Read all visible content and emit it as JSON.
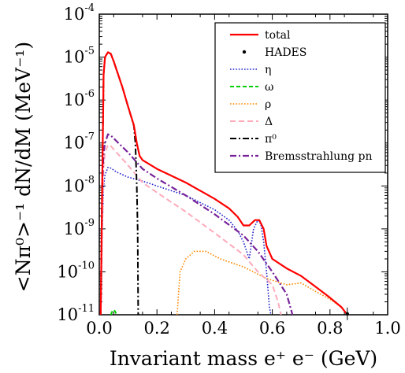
{
  "chart_data": {
    "type": "line",
    "xlabel": "Invariant mass e⁺ e⁻ (GeV)",
    "ylabel": "<Nπ⁰>⁻¹ dN/dM (MeV⁻¹)",
    "xlim": [
      0.0,
      1.0
    ],
    "ylim": [
      1e-11,
      0.0001
    ],
    "yscale": "log",
    "x_ticks": [
      "0.0",
      "0.2",
      "0.4",
      "0.6",
      "0.8",
      "1.0"
    ],
    "y_ticks": [
      {
        "base": "10",
        "exp": "-4",
        "value": 0.0001
      },
      {
        "base": "10",
        "exp": "-5",
        "value": 1e-05
      },
      {
        "base": "10",
        "exp": "-6",
        "value": 1e-06
      },
      {
        "base": "10",
        "exp": "-7",
        "value": 1e-07
      },
      {
        "base": "10",
        "exp": "-8",
        "value": 1e-08
      },
      {
        "base": "10",
        "exp": "-9",
        "value": 1e-09
      },
      {
        "base": "10",
        "exp": "-10",
        "value": 1e-10
      },
      {
        "base": "10",
        "exp": "-11",
        "value": 1e-11
      }
    ],
    "legend_position": "top-right",
    "series": [
      {
        "name": "total",
        "color": "#ff0000",
        "dash": "",
        "width": 2.2,
        "points": [
          [
            0.005,
            1e-11
          ],
          [
            0.01,
            1e-08
          ],
          [
            0.015,
            4e-06
          ],
          [
            0.02,
            1e-05
          ],
          [
            0.03,
            1.3e-05
          ],
          [
            0.04,
            1.2e-05
          ],
          [
            0.05,
            8e-06
          ],
          [
            0.06,
            5e-06
          ],
          [
            0.08,
            2e-06
          ],
          [
            0.1,
            7e-07
          ],
          [
            0.12,
            2.6e-07
          ],
          [
            0.13,
            1e-07
          ],
          [
            0.14,
            5e-08
          ],
          [
            0.15,
            4e-08
          ],
          [
            0.2,
            2.5e-08
          ],
          [
            0.3,
            1.2e-08
          ],
          [
            0.4,
            5e-09
          ],
          [
            0.45,
            3e-09
          ],
          [
            0.48,
            1.9e-09
          ],
          [
            0.5,
            1.2e-09
          ],
          [
            0.52,
            1.2e-09
          ],
          [
            0.54,
            1.6e-09
          ],
          [
            0.555,
            1.6e-09
          ],
          [
            0.57,
            1e-09
          ],
          [
            0.58,
            4e-10
          ],
          [
            0.6,
            2e-10
          ],
          [
            0.65,
            1.2e-10
          ],
          [
            0.7,
            8e-11
          ],
          [
            0.75,
            4.5e-11
          ],
          [
            0.8,
            2.5e-11
          ],
          [
            0.84,
            1.5e-11
          ],
          [
            0.86,
            1e-11
          ]
        ]
      },
      {
        "name": "HADES",
        "color": "#000000",
        "dash": "",
        "width": 0,
        "points": []
      },
      {
        "name": "η",
        "color": "#2222cc",
        "dash": "1.6 2",
        "width": 1.6,
        "points": [
          [
            0.005,
            1e-11
          ],
          [
            0.01,
            1e-09
          ],
          [
            0.015,
            1e-08
          ],
          [
            0.02,
            1.8e-08
          ],
          [
            0.03,
            2.7e-08
          ],
          [
            0.04,
            2.6e-08
          ],
          [
            0.06,
            2.1e-08
          ],
          [
            0.1,
            1.6e-08
          ],
          [
            0.15,
            1.3e-08
          ],
          [
            0.2,
            1e-08
          ],
          [
            0.3,
            6e-09
          ],
          [
            0.4,
            2.8e-09
          ],
          [
            0.45,
            1.6e-09
          ],
          [
            0.48,
            9e-10
          ],
          [
            0.5,
            5e-10
          ],
          [
            0.52,
            2e-10
          ],
          [
            0.535,
            1e-09
          ],
          [
            0.55,
            1.6e-09
          ],
          [
            0.56,
            1.3e-09
          ],
          [
            0.57,
            5e-10
          ],
          [
            0.58,
            1e-10
          ],
          [
            0.59,
            1.5e-11
          ],
          [
            0.595,
            1e-11
          ]
        ]
      },
      {
        "name": "ω",
        "color": "#00cc00",
        "dash": "5 3",
        "width": 2,
        "points": [
          [
            0.04,
            1e-11
          ],
          [
            0.045,
            1.2e-11
          ],
          [
            0.05,
            1.3e-11
          ],
          [
            0.055,
            1.2e-11
          ],
          [
            0.06,
            1e-11
          ]
        ]
      },
      {
        "name": "ρ",
        "color": "#ff8800",
        "dash": "1.6 2",
        "width": 1.6,
        "points": [
          [
            0.27,
            1e-11
          ],
          [
            0.28,
            1e-10
          ],
          [
            0.3,
            2e-10
          ],
          [
            0.33,
            3e-10
          ],
          [
            0.37,
            3e-10
          ],
          [
            0.42,
            2e-10
          ],
          [
            0.5,
            1.3e-10
          ],
          [
            0.58,
            7e-11
          ],
          [
            0.65,
            5e-11
          ],
          [
            0.7,
            5.5e-11
          ],
          [
            0.75,
            3.5e-11
          ],
          [
            0.8,
            2.3e-11
          ],
          [
            0.84,
            1.5e-11
          ],
          [
            0.86,
            1e-11
          ]
        ]
      },
      {
        "name": "Δ",
        "color": "#ffaabb",
        "dash": "7 4",
        "width": 2,
        "points": [
          [
            0.005,
            1e-11
          ],
          [
            0.01,
            1e-09
          ],
          [
            0.015,
            3e-08
          ],
          [
            0.02,
            6e-08
          ],
          [
            0.03,
            9e-08
          ],
          [
            0.04,
            8.5e-08
          ],
          [
            0.06,
            6e-08
          ],
          [
            0.1,
            3e-08
          ],
          [
            0.15,
            1.2e-08
          ],
          [
            0.2,
            7e-09
          ],
          [
            0.3,
            2.5e-09
          ],
          [
            0.4,
            8e-10
          ],
          [
            0.5,
            2.5e-10
          ],
          [
            0.55,
            1e-10
          ],
          [
            0.6,
            5e-11
          ],
          [
            0.62,
            2e-11
          ],
          [
            0.63,
            1e-11
          ]
        ]
      },
      {
        "name": "π⁰",
        "color": "#000000",
        "dash": "8 3 2 3",
        "width": 2,
        "points": [
          [
            0.005,
            1e-11
          ],
          [
            0.01,
            1e-08
          ],
          [
            0.015,
            4e-06
          ],
          [
            0.02,
            1e-05
          ],
          [
            0.03,
            1.3e-05
          ],
          [
            0.04,
            1.2e-05
          ],
          [
            0.05,
            8e-06
          ],
          [
            0.06,
            5e-06
          ],
          [
            0.08,
            2e-06
          ],
          [
            0.1,
            7e-07
          ],
          [
            0.12,
            2.5e-07
          ],
          [
            0.125,
            1e-07
          ],
          [
            0.13,
            1e-08
          ],
          [
            0.133,
            1e-09
          ],
          [
            0.135,
            1e-11
          ]
        ]
      },
      {
        "name": "Bremsstrahlung pn",
        "color": "#772299",
        "dash": "8 3 2 3",
        "width": 2.2,
        "points": [
          [
            0.005,
            1e-11
          ],
          [
            0.01,
            1e-08
          ],
          [
            0.015,
            6e-08
          ],
          [
            0.02,
            1e-07
          ],
          [
            0.03,
            1.6e-07
          ],
          [
            0.04,
            1.5e-07
          ],
          [
            0.06,
            1.1e-07
          ],
          [
            0.1,
            6e-08
          ],
          [
            0.15,
            2.5e-08
          ],
          [
            0.2,
            1.5e-08
          ],
          [
            0.3,
            6e-09
          ],
          [
            0.4,
            2.2e-09
          ],
          [
            0.5,
            7e-10
          ],
          [
            0.55,
            3e-10
          ],
          [
            0.6,
            1e-10
          ],
          [
            0.65,
            3e-11
          ],
          [
            0.67,
            1e-11
          ]
        ]
      }
    ],
    "hades_points": [
      [
        0.86,
        1.05e-11
      ]
    ]
  }
}
